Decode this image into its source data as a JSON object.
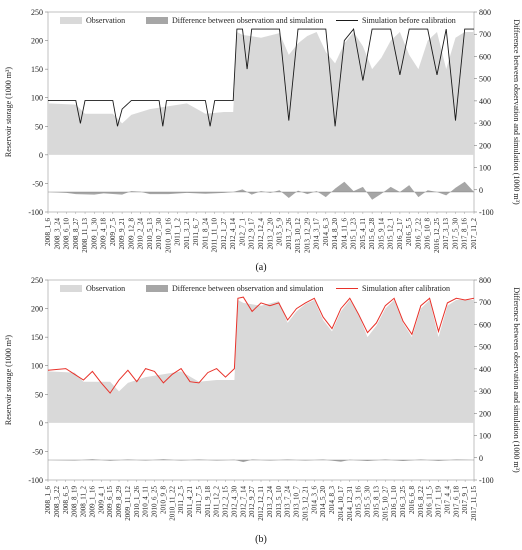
{
  "chart_data": [
    {
      "type": "area",
      "caption": "(a)",
      "y_left_label": "Reservoir storage (1000 m³)",
      "y_right_label": "Difference between observation and simulation (1000 m³)",
      "y_left_ticks": [
        "-100",
        "-50",
        "0",
        "50",
        "100",
        "150",
        "200",
        "250"
      ],
      "y_right_ticks": [
        "-100",
        "0",
        "100",
        "200",
        "300",
        "400",
        "500",
        "600",
        "700",
        "800"
      ],
      "ylim_left": [
        -100,
        250
      ],
      "ylim_right": [
        -100,
        800
      ],
      "legend": {
        "observation": "Observation",
        "difference": "Difference between observation and simulation",
        "simulation": "Simulation before calibration"
      },
      "x_labels": [
        "2008_1_6",
        "2008_3_24",
        "2008_6_10",
        "2008_8_27",
        "2008_11_13",
        "2009_1_30",
        "2009_4_18",
        "2009_7_5",
        "2009_9_21",
        "2009_12_8",
        "2010_2_24",
        "2010_5_13",
        "2010_7_30",
        "2010_10_16",
        "2011_1_2",
        "2011_3_21",
        "2011_6_7",
        "2011_8_24",
        "2011_11_10",
        "2012_1_27",
        "2012_4_14",
        "2012_7_1",
        "2012_9_17",
        "2012_12_4",
        "2013_2_20",
        "2013_5_9",
        "2013_7_26",
        "2013_10_12",
        "2013_12_29",
        "2014_3_17",
        "2014_6_3",
        "2014_8_20",
        "2014_11_6",
        "2015_1_23",
        "2015_4_11",
        "2015_6_28",
        "2015_9_14",
        "2015_12_1",
        "2016_2_17",
        "2016_5_5",
        "2016_7_22",
        "2016_10_8",
        "2016_12_25",
        "2017_3_13",
        "2017_5_30",
        "2017_8_16",
        "2017_11_2"
      ],
      "observation_series": [
        {
          "i": 0,
          "v": 90
        },
        {
          "i": 3,
          "v": 88
        },
        {
          "i": 4,
          "v": 72
        },
        {
          "i": 7,
          "v": 72
        },
        {
          "i": 8,
          "v": 55
        },
        {
          "i": 9,
          "v": 70
        },
        {
          "i": 11,
          "v": 80
        },
        {
          "i": 13,
          "v": 85
        },
        {
          "i": 15,
          "v": 90
        },
        {
          "i": 17,
          "v": 72
        },
        {
          "i": 19,
          "v": 75
        },
        {
          "i": 20,
          "v": 75
        },
        {
          "i": 20.4,
          "v": 215
        },
        {
          "i": 21,
          "v": 210
        },
        {
          "i": 23,
          "v": 205
        },
        {
          "i": 25,
          "v": 213
        },
        {
          "i": 26,
          "v": 175
        },
        {
          "i": 27,
          "v": 195
        },
        {
          "i": 28,
          "v": 208
        },
        {
          "i": 29,
          "v": 215
        },
        {
          "i": 30,
          "v": 180
        },
        {
          "i": 31,
          "v": 160
        },
        {
          "i": 32,
          "v": 195
        },
        {
          "i": 33,
          "v": 215
        },
        {
          "i": 34,
          "v": 190
        },
        {
          "i": 35,
          "v": 150
        },
        {
          "i": 36,
          "v": 170
        },
        {
          "i": 37,
          "v": 200
        },
        {
          "i": 38,
          "v": 215
        },
        {
          "i": 39,
          "v": 175
        },
        {
          "i": 40,
          "v": 150
        },
        {
          "i": 41,
          "v": 200
        },
        {
          "i": 42,
          "v": 215
        },
        {
          "i": 43,
          "v": 150
        },
        {
          "i": 44,
          "v": 205
        },
        {
          "i": 45,
          "v": 215
        },
        {
          "i": 46,
          "v": 215
        }
      ],
      "difference_series": [
        {
          "i": 0,
          "v": 0
        },
        {
          "i": 2,
          "v": -5
        },
        {
          "i": 3,
          "v": -12
        },
        {
          "i": 5,
          "v": -15
        },
        {
          "i": 6,
          "v": -8
        },
        {
          "i": 8,
          "v": -15
        },
        {
          "i": 9,
          "v": 5
        },
        {
          "i": 10,
          "v": 2
        },
        {
          "i": 11,
          "v": -12
        },
        {
          "i": 13,
          "v": -12
        },
        {
          "i": 15,
          "v": -5
        },
        {
          "i": 17,
          "v": -10
        },
        {
          "i": 19,
          "v": -5
        },
        {
          "i": 20,
          "v": 0
        },
        {
          "i": 21,
          "v": 15
        },
        {
          "i": 22,
          "v": -15
        },
        {
          "i": 23,
          "v": 5
        },
        {
          "i": 24,
          "v": -5
        },
        {
          "i": 25,
          "v": 10
        },
        {
          "i": 26,
          "v": -35
        },
        {
          "i": 27,
          "v": 8
        },
        {
          "i": 28,
          "v": -12
        },
        {
          "i": 29,
          "v": 5
        },
        {
          "i": 30,
          "v": -30
        },
        {
          "i": 31,
          "v": 20
        },
        {
          "i": 32,
          "v": 60
        },
        {
          "i": 33,
          "v": 5
        },
        {
          "i": 34,
          "v": 30
        },
        {
          "i": 35,
          "v": -45
        },
        {
          "i": 36,
          "v": -10
        },
        {
          "i": 37,
          "v": 30
        },
        {
          "i": 38,
          "v": 0
        },
        {
          "i": 39,
          "v": 40
        },
        {
          "i": 40,
          "v": -30
        },
        {
          "i": 41,
          "v": 10
        },
        {
          "i": 42,
          "v": 0
        },
        {
          "i": 43,
          "v": -20
        },
        {
          "i": 44,
          "v": 25
        },
        {
          "i": 45,
          "v": 60
        },
        {
          "i": 46,
          "v": 0
        }
      ],
      "simulation_series": [
        {
          "i": 0,
          "v": 95
        },
        {
          "i": 3,
          "v": 95
        },
        {
          "i": 3.5,
          "v": 55
        },
        {
          "i": 4,
          "v": 95
        },
        {
          "i": 7,
          "v": 95
        },
        {
          "i": 7.5,
          "v": 50
        },
        {
          "i": 8,
          "v": 80
        },
        {
          "i": 9,
          "v": 95
        },
        {
          "i": 12,
          "v": 95
        },
        {
          "i": 12.4,
          "v": 50
        },
        {
          "i": 12.8,
          "v": 95
        },
        {
          "i": 17,
          "v": 95
        },
        {
          "i": 17.5,
          "v": 50
        },
        {
          "i": 18,
          "v": 95
        },
        {
          "i": 20,
          "v": 95
        },
        {
          "i": 20.4,
          "v": 220
        },
        {
          "i": 21,
          "v": 220
        },
        {
          "i": 21.5,
          "v": 150
        },
        {
          "i": 22,
          "v": 220
        },
        {
          "i": 25,
          "v": 220
        },
        {
          "i": 26,
          "v": 60
        },
        {
          "i": 27,
          "v": 220
        },
        {
          "i": 30,
          "v": 220
        },
        {
          "i": 31,
          "v": 50
        },
        {
          "i": 32,
          "v": 200
        },
        {
          "i": 33,
          "v": 220
        },
        {
          "i": 34,
          "v": 130
        },
        {
          "i": 35,
          "v": 220
        },
        {
          "i": 37,
          "v": 220
        },
        {
          "i": 38,
          "v": 140
        },
        {
          "i": 39,
          "v": 220
        },
        {
          "i": 41,
          "v": 220
        },
        {
          "i": 42,
          "v": 140
        },
        {
          "i": 43,
          "v": 220
        },
        {
          "i": 44,
          "v": 60
        },
        {
          "i": 45,
          "v": 220
        },
        {
          "i": 46,
          "v": 220
        }
      ]
    },
    {
      "type": "area",
      "caption": "(b)",
      "y_left_label": "Reservoir storage (1000 m³)",
      "y_right_label": "Difference between observation and simulation (1000 m³)",
      "y_left_ticks": [
        "-100",
        "-50",
        "0",
        "50",
        "100",
        "150",
        "200",
        "250"
      ],
      "y_right_ticks": [
        "-100",
        "0",
        "100",
        "200",
        "300",
        "400",
        "500",
        "600",
        "700",
        "800"
      ],
      "ylim_left": [
        -100,
        250
      ],
      "ylim_right": [
        -100,
        800
      ],
      "legend": {
        "observation": "Observation",
        "difference": "Difference between observation and simulation",
        "simulation": "Simulation after calibration"
      },
      "x_labels": [
        "2008_1_6",
        "2008_3_22",
        "2008_6_5",
        "2008_8_19",
        "2008_11_2",
        "2009_1_16",
        "2009_4_1",
        "2009_6_15",
        "2009_8_29",
        "2009_11_12",
        "2010_1_26",
        "2010_4_11",
        "2010_6_25",
        "2010_9_8",
        "2010_11_22",
        "2011_2_5",
        "2011_4_21",
        "2011_7_5",
        "2011_9_18",
        "2011_12_2",
        "2012_2_15",
        "2012_4_30",
        "2012_7_14",
        "2012_9_27",
        "2012_12_11",
        "2013_2_24",
        "2013_5_10",
        "2013_7_24",
        "2013_10_7",
        "2013_12_21",
        "2014_3_6",
        "2014_5_20",
        "2014_8_3",
        "2014_10_17",
        "2014_12_31",
        "2015_3_16",
        "2015_5_30",
        "2015_8_13",
        "2015_10_27",
        "2016_1_10",
        "2016_3_25",
        "2016_6_8",
        "2016_8_22",
        "2016_11_5",
        "2017_1_19",
        "2017_4_4",
        "2017_6_18",
        "2017_9_1",
        "2017_11_15"
      ],
      "observation_series": [
        {
          "i": 0,
          "v": 90
        },
        {
          "i": 3,
          "v": 88
        },
        {
          "i": 4,
          "v": 72
        },
        {
          "i": 7,
          "v": 72
        },
        {
          "i": 8,
          "v": 55
        },
        {
          "i": 9,
          "v": 70
        },
        {
          "i": 11,
          "v": 80
        },
        {
          "i": 13,
          "v": 85
        },
        {
          "i": 15,
          "v": 90
        },
        {
          "i": 17,
          "v": 72
        },
        {
          "i": 19,
          "v": 75
        },
        {
          "i": 21,
          "v": 75
        },
        {
          "i": 21.4,
          "v": 215
        },
        {
          "i": 22,
          "v": 210
        },
        {
          "i": 24,
          "v": 205
        },
        {
          "i": 26,
          "v": 213
        },
        {
          "i": 27,
          "v": 175
        },
        {
          "i": 28,
          "v": 195
        },
        {
          "i": 29,
          "v": 208
        },
        {
          "i": 30,
          "v": 215
        },
        {
          "i": 31,
          "v": 180
        },
        {
          "i": 32,
          "v": 160
        },
        {
          "i": 33,
          "v": 195
        },
        {
          "i": 34,
          "v": 215
        },
        {
          "i": 35,
          "v": 190
        },
        {
          "i": 36,
          "v": 150
        },
        {
          "i": 37,
          "v": 170
        },
        {
          "i": 38,
          "v": 200
        },
        {
          "i": 39,
          "v": 215
        },
        {
          "i": 40,
          "v": 175
        },
        {
          "i": 41,
          "v": 150
        },
        {
          "i": 42,
          "v": 200
        },
        {
          "i": 43,
          "v": 215
        },
        {
          "i": 44,
          "v": 150
        },
        {
          "i": 45,
          "v": 205
        },
        {
          "i": 46,
          "v": 215
        },
        {
          "i": 48,
          "v": 215
        }
      ],
      "difference_series": [
        {
          "i": 0,
          "v": 0
        },
        {
          "i": 3,
          "v": -3
        },
        {
          "i": 5,
          "v": 4
        },
        {
          "i": 7,
          "v": -4
        },
        {
          "i": 9,
          "v": 3
        },
        {
          "i": 11,
          "v": -3
        },
        {
          "i": 13,
          "v": 4
        },
        {
          "i": 15,
          "v": -3
        },
        {
          "i": 17,
          "v": 3
        },
        {
          "i": 19,
          "v": -3
        },
        {
          "i": 21,
          "v": 2
        },
        {
          "i": 22,
          "v": -12
        },
        {
          "i": 23,
          "v": 3
        },
        {
          "i": 25,
          "v": -3
        },
        {
          "i": 27,
          "v": 3
        },
        {
          "i": 29,
          "v": -3
        },
        {
          "i": 31,
          "v": 3
        },
        {
          "i": 33,
          "v": -10
        },
        {
          "i": 34,
          "v": 2
        },
        {
          "i": 36,
          "v": -6
        },
        {
          "i": 38,
          "v": 3
        },
        {
          "i": 40,
          "v": -6
        },
        {
          "i": 42,
          "v": 3
        },
        {
          "i": 44,
          "v": -5
        },
        {
          "i": 46,
          "v": 3
        },
        {
          "i": 48,
          "v": 0
        }
      ],
      "simulation_series": [
        {
          "i": 0,
          "v": 92
        },
        {
          "i": 2,
          "v": 95
        },
        {
          "i": 3,
          "v": 85
        },
        {
          "i": 4,
          "v": 75
        },
        {
          "i": 5,
          "v": 90
        },
        {
          "i": 6,
          "v": 70
        },
        {
          "i": 7,
          "v": 52
        },
        {
          "i": 8,
          "v": 75
        },
        {
          "i": 9,
          "v": 92
        },
        {
          "i": 10,
          "v": 72
        },
        {
          "i": 11,
          "v": 95
        },
        {
          "i": 12,
          "v": 90
        },
        {
          "i": 13,
          "v": 70
        },
        {
          "i": 14,
          "v": 85
        },
        {
          "i": 15,
          "v": 95
        },
        {
          "i": 16,
          "v": 72
        },
        {
          "i": 17,
          "v": 70
        },
        {
          "i": 18,
          "v": 88
        },
        {
          "i": 19,
          "v": 95
        },
        {
          "i": 20,
          "v": 80
        },
        {
          "i": 21,
          "v": 95
        },
        {
          "i": 21.4,
          "v": 218
        },
        {
          "i": 22,
          "v": 220
        },
        {
          "i": 23,
          "v": 195
        },
        {
          "i": 24,
          "v": 210
        },
        {
          "i": 25,
          "v": 205
        },
        {
          "i": 26,
          "v": 210
        },
        {
          "i": 27,
          "v": 180
        },
        {
          "i": 28,
          "v": 200
        },
        {
          "i": 29,
          "v": 210
        },
        {
          "i": 30,
          "v": 218
        },
        {
          "i": 31,
          "v": 185
        },
        {
          "i": 32,
          "v": 165
        },
        {
          "i": 33,
          "v": 200
        },
        {
          "i": 34,
          "v": 218
        },
        {
          "i": 35,
          "v": 190
        },
        {
          "i": 36,
          "v": 158
        },
        {
          "i": 37,
          "v": 175
        },
        {
          "i": 38,
          "v": 205
        },
        {
          "i": 39,
          "v": 218
        },
        {
          "i": 40,
          "v": 178
        },
        {
          "i": 41,
          "v": 155
        },
        {
          "i": 42,
          "v": 205
        },
        {
          "i": 43,
          "v": 218
        },
        {
          "i": 44,
          "v": 160
        },
        {
          "i": 45,
          "v": 210
        },
        {
          "i": 46,
          "v": 218
        },
        {
          "i": 47,
          "v": 215
        },
        {
          "i": 48,
          "v": 218
        }
      ]
    }
  ],
  "colors": {
    "observation": "#d9d9d9",
    "difference": "#a6a6a6",
    "simulation_before": "#1a1a1a",
    "simulation_after": "#e8322a"
  }
}
